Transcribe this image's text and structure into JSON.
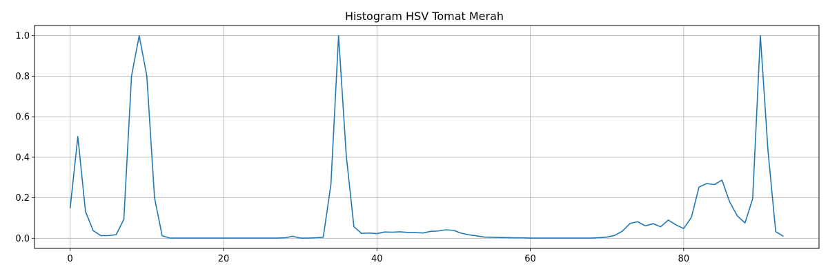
{
  "chart_data": {
    "type": "line",
    "title": "Histogram HSV Tomat Merah",
    "xlabel": "",
    "ylabel": "",
    "xlim": [
      -4.65,
      97.65
    ],
    "ylim": [
      -0.05,
      1.05
    ],
    "grid": true,
    "legend": "none",
    "x_ticks": [
      0,
      20,
      40,
      60,
      80
    ],
    "y_ticks": [
      0.0,
      0.2,
      0.4,
      0.6,
      0.8,
      1.0
    ],
    "x_tick_labels": [
      "0",
      "20",
      "40",
      "60",
      "80"
    ],
    "y_tick_labels": [
      "0.0",
      "0.2",
      "0.4",
      "0.6",
      "0.8",
      "1.0"
    ],
    "series": [
      {
        "color": "#1f77b4",
        "x": [
          0,
          1,
          2,
          3,
          4,
          5,
          6,
          7,
          8,
          9,
          10,
          11,
          12,
          13,
          14,
          15,
          16,
          17,
          18,
          19,
          20,
          21,
          22,
          23,
          24,
          25,
          26,
          27,
          28,
          29,
          30,
          31,
          32,
          33,
          34,
          35,
          36,
          37,
          38,
          39,
          40,
          41,
          42,
          43,
          44,
          45,
          46,
          47,
          48,
          49,
          50,
          51,
          52,
          53,
          54,
          55,
          56,
          57,
          58,
          59,
          60,
          61,
          62,
          63,
          64,
          65,
          66,
          67,
          68,
          69,
          70,
          71,
          72,
          73,
          74,
          75,
          76,
          77,
          78,
          79,
          80,
          81,
          82,
          83,
          84,
          85,
          86,
          87,
          88,
          89,
          90,
          91,
          92,
          93
        ],
        "values": [
          0.148,
          0.502,
          0.132,
          0.038,
          0.013,
          0.013,
          0.018,
          0.093,
          0.8,
          1.0,
          0.8,
          0.2,
          0.012,
          0.001,
          0.001,
          0.001,
          0.001,
          0.001,
          0.001,
          0.001,
          0.001,
          0.001,
          0.001,
          0.001,
          0.001,
          0.001,
          0.001,
          0.001,
          0.002,
          0.01,
          0.001,
          0.001,
          0.002,
          0.005,
          0.265,
          1.0,
          0.41,
          0.057,
          0.024,
          0.026,
          0.023,
          0.031,
          0.03,
          0.032,
          0.029,
          0.028,
          0.026,
          0.034,
          0.036,
          0.042,
          0.039,
          0.025,
          0.017,
          0.012,
          0.006,
          0.005,
          0.004,
          0.003,
          0.002,
          0.002,
          0.001,
          0.001,
          0.001,
          0.001,
          0.001,
          0.001,
          0.001,
          0.001,
          0.001,
          0.003,
          0.006,
          0.014,
          0.035,
          0.073,
          0.082,
          0.061,
          0.072,
          0.057,
          0.09,
          0.066,
          0.048,
          0.103,
          0.253,
          0.27,
          0.265,
          0.287,
          0.179,
          0.11,
          0.076,
          0.196,
          1.0,
          0.43,
          0.033,
          0.01
        ]
      }
    ]
  }
}
